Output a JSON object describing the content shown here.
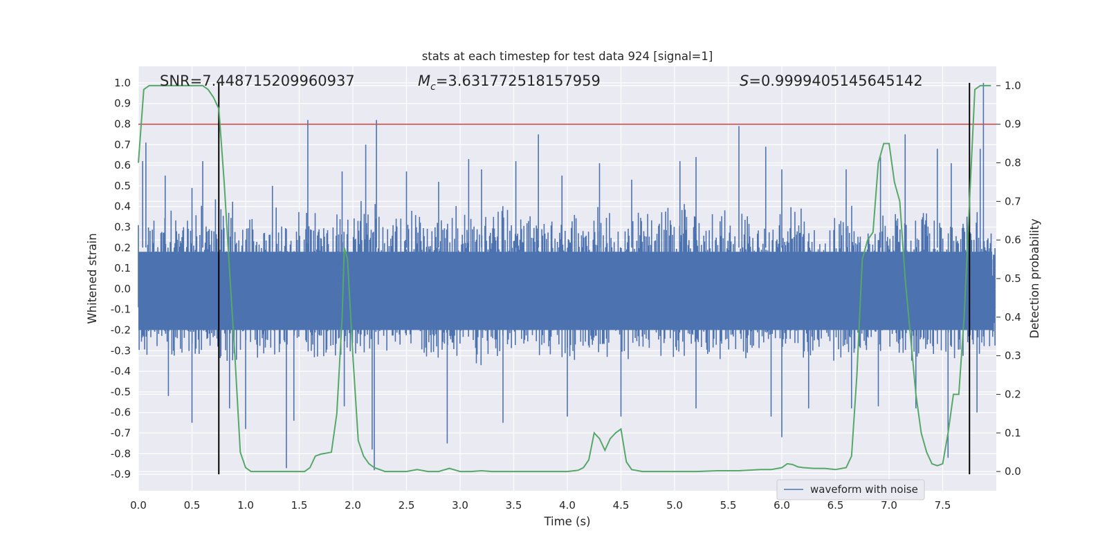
{
  "chart_data": {
    "type": "line",
    "title": "stats at each timestep for test data 924 [signal=1]",
    "xlabel": "Time (s)",
    "ylabel_left": "Whitened strain",
    "ylabel_right": "Detection probability",
    "xlim": [
      0.0,
      8.0
    ],
    "ylim_left": [
      -0.98,
      1.08
    ],
    "ylim_right": [
      -0.05,
      1.05
    ],
    "x_ticks": [
      "0.0",
      "0.5",
      "1.0",
      "1.5",
      "2.0",
      "2.5",
      "3.0",
      "3.5",
      "4.0",
      "4.5",
      "5.0",
      "5.5",
      "6.0",
      "6.5",
      "7.0",
      "7.5"
    ],
    "y_ticks_left": [
      "1.0",
      "0.9",
      "0.8",
      "0.7",
      "0.6",
      "0.5",
      "0.4",
      "0.3",
      "0.2",
      "0.1",
      "0.0",
      "-0.1",
      "-0.2",
      "-0.3",
      "-0.4",
      "-0.5",
      "-0.6",
      "-0.7",
      "-0.8",
      "-0.9"
    ],
    "y_ticks_right": [
      "1.0",
      "0.9",
      "0.8",
      "0.7",
      "0.6",
      "0.5",
      "0.4",
      "0.3",
      "0.2",
      "0.1",
      "0.0"
    ],
    "grid": true,
    "legend_position": "lower-right",
    "annotations": {
      "snr": "SNR=7.448715209960937",
      "mc_symbol": "M",
      "mc_sub": "c",
      "mc_value": "=3.631772518157959",
      "s_symbol": "S",
      "s_value": "=0.9999405145645142"
    },
    "threshold_line": {
      "value": 0.9,
      "axis": "right",
      "color": "#c44e52"
    },
    "vertical_lines": {
      "x": [
        0.75,
        7.75
      ],
      "y_range": [
        -0.9,
        1.0
      ],
      "color": "#000000"
    },
    "series": [
      {
        "name": "waveform with noise",
        "axis": "left",
        "color": "#4c72b0",
        "envelope": {
          "x": [
            0.0,
            0.25,
            0.5,
            0.75,
            1.0,
            1.25,
            1.5,
            1.75,
            2.0,
            2.25,
            2.5,
            2.75,
            3.0,
            3.25,
            3.5,
            3.75,
            4.0,
            4.25,
            4.5,
            4.75,
            5.0,
            5.25,
            5.5,
            5.75,
            6.0,
            6.25,
            6.5,
            6.75,
            7.0,
            7.25,
            7.5,
            7.75,
            8.0
          ],
          "upper": [
            0.42,
            0.4,
            0.43,
            0.44,
            0.42,
            0.41,
            0.43,
            0.42,
            0.44,
            0.43,
            0.42,
            0.44,
            0.43,
            0.45,
            0.44,
            0.43,
            0.42,
            0.44,
            0.45,
            0.43,
            0.42,
            0.43,
            0.44,
            0.42,
            0.43,
            0.44,
            0.43,
            0.42,
            0.43,
            0.44,
            0.42,
            0.43,
            0.42
          ],
          "lower": [
            -0.37,
            -0.36,
            -0.38,
            -0.37,
            -0.39,
            -0.38,
            -0.37,
            -0.38,
            -0.39,
            -0.38,
            -0.37,
            -0.38,
            -0.37,
            -0.39,
            -0.38,
            -0.37,
            -0.38,
            -0.37,
            -0.39,
            -0.38,
            -0.37,
            -0.38,
            -0.39,
            -0.38,
            -0.37,
            -0.38,
            -0.39,
            -0.38,
            -0.37,
            -0.38,
            -0.39,
            -0.38,
            -0.37
          ]
        },
        "peaks": [
          [
            0.04,
            0.62
          ],
          [
            0.07,
            0.71
          ],
          [
            0.25,
            0.55
          ],
          [
            0.5,
            0.49
          ],
          [
            0.6,
            0.62
          ],
          [
            1.25,
            0.5
          ],
          [
            1.58,
            0.82
          ],
          [
            1.9,
            0.57
          ],
          [
            2.12,
            0.7
          ],
          [
            2.22,
            0.82
          ],
          [
            2.5,
            0.57
          ],
          [
            2.8,
            0.52
          ],
          [
            3.08,
            0.63
          ],
          [
            3.2,
            0.58
          ],
          [
            3.52,
            0.62
          ],
          [
            3.73,
            0.75
          ],
          [
            3.95,
            0.55
          ],
          [
            4.3,
            0.61
          ],
          [
            4.6,
            0.53
          ],
          [
            5.05,
            0.62
          ],
          [
            5.2,
            0.64
          ],
          [
            5.6,
            0.79
          ],
          [
            5.85,
            0.69
          ],
          [
            6.0,
            0.58
          ],
          [
            6.6,
            0.58
          ],
          [
            6.92,
            0.64
          ],
          [
            7.15,
            0.75
          ],
          [
            7.45,
            0.68
          ],
          [
            7.58,
            0.61
          ],
          [
            7.85,
            0.68
          ],
          [
            7.88,
            1.0
          ]
        ],
        "troughs": [
          [
            0.28,
            -0.52
          ],
          [
            0.5,
            -0.65
          ],
          [
            0.85,
            -0.58
          ],
          [
            1.0,
            -0.68
          ],
          [
            1.38,
            -0.87
          ],
          [
            1.45,
            -0.64
          ],
          [
            1.92,
            -0.57
          ],
          [
            2.18,
            -0.78
          ],
          [
            2.2,
            -0.88
          ],
          [
            2.88,
            -0.75
          ],
          [
            3.4,
            -0.65
          ],
          [
            4.0,
            -0.62
          ],
          [
            4.5,
            -0.62
          ],
          [
            5.2,
            -0.58
          ],
          [
            5.9,
            -0.62
          ],
          [
            6.0,
            -0.72
          ],
          [
            6.25,
            -0.58
          ],
          [
            6.65,
            -0.58
          ],
          [
            6.9,
            -0.57
          ],
          [
            7.25,
            -0.58
          ],
          [
            7.55,
            -0.82
          ],
          [
            7.82,
            -0.6
          ]
        ]
      },
      {
        "name": "",
        "axis": "right",
        "color": "#55a868",
        "x": [
          0.0,
          0.05,
          0.1,
          0.15,
          0.2,
          0.3,
          0.4,
          0.5,
          0.6,
          0.65,
          0.7,
          0.75,
          0.8,
          0.85,
          0.9,
          0.95,
          1.0,
          1.05,
          1.1,
          1.2,
          1.3,
          1.4,
          1.5,
          1.55,
          1.6,
          1.65,
          1.7,
          1.8,
          1.85,
          1.9,
          1.92,
          1.95,
          2.0,
          2.05,
          2.1,
          2.15,
          2.2,
          2.3,
          2.4,
          2.5,
          2.6,
          2.7,
          2.8,
          2.9,
          3.0,
          3.1,
          3.2,
          3.3,
          3.5,
          3.7,
          3.9,
          4.0,
          4.1,
          4.15,
          4.2,
          4.25,
          4.3,
          4.35,
          4.4,
          4.45,
          4.5,
          4.55,
          4.6,
          4.7,
          4.8,
          4.9,
          5.0,
          5.2,
          5.4,
          5.6,
          5.8,
          5.9,
          6.0,
          6.05,
          6.1,
          6.15,
          6.2,
          6.3,
          6.4,
          6.5,
          6.6,
          6.65,
          6.7,
          6.75,
          6.8,
          6.85,
          6.9,
          6.95,
          7.0,
          7.05,
          7.1,
          7.15,
          7.2,
          7.25,
          7.3,
          7.35,
          7.4,
          7.45,
          7.5,
          7.55,
          7.6,
          7.65,
          7.7,
          7.75,
          7.8,
          7.85,
          7.9,
          7.95
        ],
        "values": [
          0.8,
          0.99,
          1.0,
          1.0,
          1.0,
          1.0,
          1.0,
          1.0,
          1.0,
          0.99,
          0.97,
          0.94,
          0.75,
          0.52,
          0.3,
          0.05,
          0.01,
          0.0,
          0.0,
          0.0,
          0.0,
          0.0,
          0.0,
          0.0,
          0.01,
          0.04,
          0.045,
          0.05,
          0.15,
          0.4,
          0.58,
          0.55,
          0.3,
          0.08,
          0.04,
          0.02,
          0.01,
          0.0,
          0.0,
          0.0,
          0.005,
          0.0,
          0.0,
          0.008,
          0.0,
          0.0,
          0.002,
          0.0,
          0.0,
          0.0,
          0.0,
          0.0,
          0.003,
          0.01,
          0.03,
          0.1,
          0.085,
          0.055,
          0.085,
          0.1,
          0.11,
          0.025,
          0.005,
          0.0,
          0.0,
          0.0,
          0.0,
          0.0,
          0.002,
          0.002,
          0.005,
          0.005,
          0.01,
          0.02,
          0.018,
          0.012,
          0.01,
          0.008,
          0.008,
          0.005,
          0.01,
          0.04,
          0.25,
          0.55,
          0.6,
          0.62,
          0.8,
          0.85,
          0.85,
          0.75,
          0.7,
          0.5,
          0.35,
          0.2,
          0.1,
          0.05,
          0.02,
          0.015,
          0.02,
          0.1,
          0.2,
          0.2,
          0.4,
          0.7,
          0.99,
          1.0,
          1.0,
          1.0
        ]
      }
    ]
  }
}
